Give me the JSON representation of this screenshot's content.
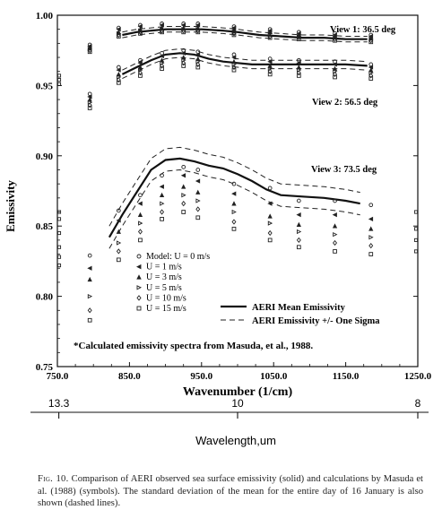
{
  "chart_data": {
    "type": "line",
    "ylabel": "Emissivity",
    "xlabel": "Wavenumber (1/cm)",
    "xlim": [
      750,
      1250
    ],
    "ylim": [
      0.75,
      1.0
    ],
    "x_ticks": [
      750,
      850,
      950,
      1050,
      1150,
      1250
    ],
    "x_tick_labels": [
      "750.0",
      "850.0",
      "950.0",
      "1050.0",
      "1150.0",
      "1250.0"
    ],
    "y_ticks": [
      0.75,
      0.8,
      0.85,
      0.9,
      0.95,
      1.0
    ],
    "y_tick_labels": [
      "0.75",
      "0.80",
      "0.85",
      "0.90",
      "0.95",
      "1.00"
    ],
    "secondary_axis": {
      "label": "Wavelength,um",
      "ticks": [
        {
          "label": "13.3",
          "wavenumber": 752
        },
        {
          "label": "10",
          "wavenumber": 1000
        },
        {
          "label": "8",
          "wavenumber": 1250
        }
      ]
    },
    "views": [
      {
        "label": "View 1: 36.5 deg",
        "mean": [
          [
            840,
            0.986
          ],
          [
            860,
            0.988
          ],
          [
            880,
            0.989
          ],
          [
            900,
            0.99
          ],
          [
            920,
            0.99
          ],
          [
            950,
            0.99
          ],
          [
            980,
            0.989
          ],
          [
            1000,
            0.988
          ],
          [
            1030,
            0.986
          ],
          [
            1060,
            0.985
          ],
          [
            1090,
            0.984
          ],
          [
            1120,
            0.984
          ],
          [
            1150,
            0.983
          ],
          [
            1180,
            0.983
          ]
        ],
        "sigma": 0.002
      },
      {
        "label": "View 2: 56.5 deg",
        "mean": [
          [
            840,
            0.958
          ],
          [
            860,
            0.963
          ],
          [
            880,
            0.968
          ],
          [
            900,
            0.972
          ],
          [
            920,
            0.973
          ],
          [
            940,
            0.972
          ],
          [
            960,
            0.969
          ],
          [
            980,
            0.967
          ],
          [
            1000,
            0.966
          ],
          [
            1020,
            0.965
          ],
          [
            1040,
            0.965
          ],
          [
            1060,
            0.965
          ],
          [
            1090,
            0.965
          ],
          [
            1120,
            0.965
          ],
          [
            1150,
            0.965
          ],
          [
            1180,
            0.964
          ]
        ],
        "sigma": 0.003
      },
      {
        "label": "View 3: 73.5 deg",
        "mean": [
          [
            822,
            0.842
          ],
          [
            840,
            0.858
          ],
          [
            860,
            0.874
          ],
          [
            880,
            0.89
          ],
          [
            900,
            0.897
          ],
          [
            920,
            0.898
          ],
          [
            940,
            0.896
          ],
          [
            960,
            0.893
          ],
          [
            980,
            0.891
          ],
          [
            1000,
            0.887
          ],
          [
            1020,
            0.882
          ],
          [
            1040,
            0.876
          ],
          [
            1060,
            0.872
          ],
          [
            1090,
            0.871
          ],
          [
            1120,
            0.87
          ],
          [
            1150,
            0.868
          ],
          [
            1170,
            0.866
          ]
        ],
        "sigma": 0.008
      }
    ],
    "model_wavenumbers": [
      795,
      835,
      865,
      895,
      925,
      945,
      995,
      1045,
      1085,
      1135,
      1185
    ],
    "model_series": [
      {
        "name": "Model: U = 0 m/s",
        "symbol": "circle",
        "view1": [
          0.979,
          0.991,
          0.993,
          0.994,
          0.994,
          0.994,
          0.992,
          0.99,
          0.988,
          0.987,
          0.986
        ],
        "view2": [
          0.944,
          0.963,
          0.968,
          0.973,
          0.975,
          0.974,
          0.972,
          0.969,
          0.968,
          0.967,
          0.965
        ],
        "view3": [
          0.829,
          0.861,
          0.872,
          0.886,
          0.892,
          0.89,
          0.88,
          0.877,
          0.868,
          0.868,
          0.865
        ]
      },
      {
        "name": "U = 1 m/s",
        "symbol": "triangle-left",
        "view1": [
          0.978,
          0.99,
          0.992,
          0.993,
          0.993,
          0.993,
          0.991,
          0.989,
          0.987,
          0.986,
          0.985
        ],
        "view2": [
          0.942,
          0.961,
          0.966,
          0.971,
          0.973,
          0.972,
          0.97,
          0.967,
          0.966,
          0.965,
          0.963
        ],
        "view3": [
          0.82,
          0.854,
          0.866,
          0.878,
          0.886,
          0.882,
          0.873,
          0.866,
          0.858,
          0.858,
          0.855
        ]
      },
      {
        "name": "U = 3 m/s",
        "symbol": "triangle-up",
        "view1": [
          0.977,
          0.988,
          0.99,
          0.991,
          0.991,
          0.991,
          0.99,
          0.988,
          0.986,
          0.985,
          0.984
        ],
        "view2": [
          0.94,
          0.958,
          0.963,
          0.968,
          0.97,
          0.969,
          0.967,
          0.964,
          0.963,
          0.962,
          0.961
        ],
        "view3": [
          0.812,
          0.846,
          0.858,
          0.872,
          0.878,
          0.874,
          0.866,
          0.857,
          0.851,
          0.85,
          0.848
        ]
      },
      {
        "name": "U = 5 m/s",
        "symbol": "triangle-right",
        "view1": [
          0.976,
          0.987,
          0.989,
          0.99,
          0.99,
          0.99,
          0.988,
          0.987,
          0.985,
          0.984,
          0.983
        ],
        "view2": [
          0.938,
          0.956,
          0.961,
          0.966,
          0.968,
          0.967,
          0.965,
          0.962,
          0.961,
          0.96,
          0.959
        ],
        "view3": [
          0.8,
          0.838,
          0.852,
          0.866,
          0.872,
          0.868,
          0.86,
          0.852,
          0.846,
          0.844,
          0.842
        ]
      },
      {
        "name": "U = 10 m/s",
        "symbol": "diamond",
        "view1": [
          0.975,
          0.986,
          0.988,
          0.989,
          0.989,
          0.989,
          0.987,
          0.985,
          0.984,
          0.983,
          0.982
        ],
        "view2": [
          0.936,
          0.954,
          0.959,
          0.964,
          0.966,
          0.965,
          0.963,
          0.96,
          0.959,
          0.958,
          0.957
        ],
        "view3": [
          0.79,
          0.832,
          0.846,
          0.86,
          0.866,
          0.862,
          0.853,
          0.845,
          0.84,
          0.838,
          0.836
        ]
      },
      {
        "name": "U = 15 m/s",
        "symbol": "square",
        "view1": [
          0.974,
          0.985,
          0.987,
          0.988,
          0.988,
          0.988,
          0.986,
          0.984,
          0.983,
          0.982,
          0.981
        ],
        "view2": [
          0.934,
          0.952,
          0.957,
          0.962,
          0.964,
          0.963,
          0.961,
          0.958,
          0.957,
          0.956,
          0.955
        ],
        "view3": [
          0.783,
          0.826,
          0.84,
          0.855,
          0.86,
          0.856,
          0.848,
          0.84,
          0.835,
          0.832,
          0.83
        ]
      }
    ],
    "edge_markers": {
      "left": [
        0.957,
        0.954,
        0.951,
        0.86,
        0.855,
        0.845,
        0.835,
        0.828,
        0.822
      ],
      "right": [
        0.86,
        0.848,
        0.84,
        0.832
      ]
    },
    "legend": {
      "mean_label": "AERI Mean Emissivity",
      "sigma_label": "AERI Emissivity +/- One Sigma"
    },
    "note": "*Calculated emissivity spectra from Masuda, et al., 1988."
  },
  "caption": {
    "fig_no": "Fig. 10.",
    "text": "Comparison of AERI observed sea surface emissivity (solid) and calculations by Masuda et al. (1988) (symbols). The standard deviation of the mean for the entire day of 16 January is also shown (dashed lines)."
  }
}
